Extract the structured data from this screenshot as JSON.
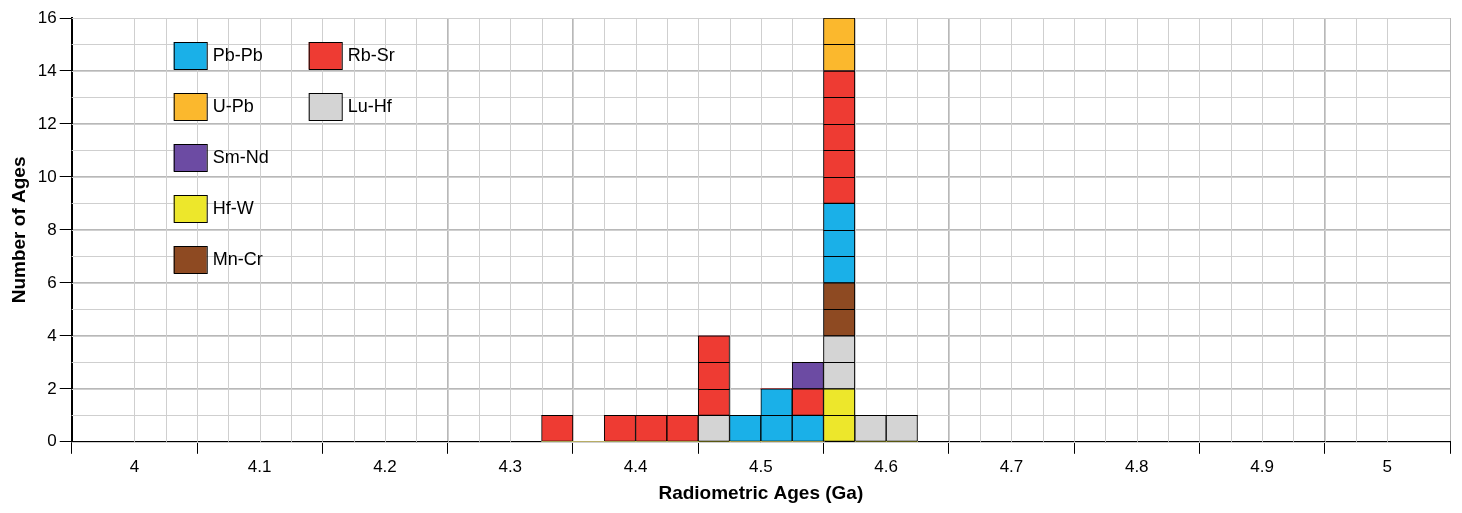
{
  "chart_data": {
    "type": "histogram",
    "x_label": "Radiometric Ages (Ga)",
    "y_label": "Number of Ages",
    "bins": [
      4.325,
      4.35,
      4.375,
      4.4,
      4.425,
      4.45,
      4.475,
      4.5,
      4.525,
      4.55,
      4.575,
      4.6,
      4.625
    ],
    "series": [
      {
        "name": "Pb-Pb",
        "color": "#1ab0e8",
        "values": [
          0,
          0,
          0,
          0,
          0,
          0,
          1,
          2,
          1,
          3,
          0,
          0
        ]
      },
      {
        "name": "Rb-Sr",
        "color": "#ee3b33",
        "values": [
          1,
          0,
          1,
          1,
          1,
          3,
          0,
          0,
          1,
          5,
          0,
          0
        ]
      },
      {
        "name": "U-Pb",
        "color": "#fbb82d",
        "values": [
          0,
          0,
          0,
          0,
          0,
          0,
          0,
          0,
          0,
          2,
          0,
          0
        ]
      },
      {
        "name": "Lu-Hf",
        "color": "#d4d4d4",
        "values": [
          0,
          0,
          0,
          0,
          0,
          1,
          0,
          0,
          0,
          2,
          1,
          1
        ]
      },
      {
        "name": "Sm-Nd",
        "color": "#6c4ba3",
        "values": [
          0,
          0,
          0,
          0,
          0,
          0,
          0,
          0,
          1,
          0,
          0,
          0
        ]
      },
      {
        "name": "Hf-W",
        "color": "#ede72b",
        "values": [
          0,
          0,
          0,
          0,
          0,
          0,
          0,
          0,
          0,
          2,
          0,
          0
        ]
      },
      {
        "name": "Mn-Cr",
        "color": "#8e4a22",
        "values": [
          0,
          0,
          0,
          0,
          0,
          0,
          0,
          0,
          0,
          2,
          0,
          0
        ]
      }
    ],
    "stacked": true,
    "legend": "upper left",
    "grid": true,
    "xlim": [
      4,
      5
    ],
    "xticks": [
      4,
      4.1,
      4.2,
      4.3,
      4.4,
      4.5,
      4.6,
      4.7,
      4.8,
      4.9,
      5
    ],
    "ylim": [
      0,
      16
    ],
    "yticks": [
      0,
      2,
      4,
      6,
      8,
      10,
      12,
      14,
      16
    ]
  }
}
